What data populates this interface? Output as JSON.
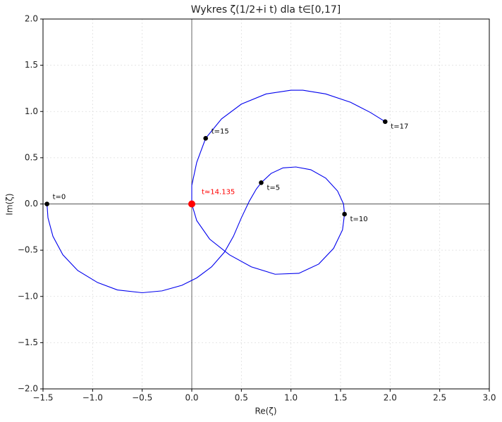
{
  "chart_data": {
    "type": "line",
    "title": "Wykres ζ(1/2+i t) dla t∈[0,17]",
    "xlabel": "Re(ζ)",
    "ylabel": "Im(ζ)",
    "xlim": [
      -1.5,
      3.0
    ],
    "ylim": [
      -2.0,
      2.0
    ],
    "xticks": [
      {
        "value": -1.5,
        "label": "−1.5"
      },
      {
        "value": -1.0,
        "label": "−1.0"
      },
      {
        "value": -0.5,
        "label": "−0.5"
      },
      {
        "value": 0,
        "label": "0.0"
      },
      {
        "value": 0.5,
        "label": "0.5"
      },
      {
        "value": 1,
        "label": "1.0"
      },
      {
        "value": 1.5,
        "label": "1.5"
      },
      {
        "value": 2,
        "label": "2.0"
      },
      {
        "value": 2.5,
        "label": "2.5"
      },
      {
        "value": 3,
        "label": "3.0"
      }
    ],
    "yticks": [
      {
        "value": -2,
        "label": "−2.0"
      },
      {
        "value": -1.5,
        "label": "−1.5"
      },
      {
        "value": -1,
        "label": "−1.0"
      },
      {
        "value": -0.5,
        "label": "−0.5"
      },
      {
        "value": 0,
        "label": "0.0"
      },
      {
        "value": 0.5,
        "label": "0.5"
      },
      {
        "value": 1,
        "label": "1.0"
      },
      {
        "value": 1.5,
        "label": "1.5"
      },
      {
        "value": 2,
        "label": "2.0"
      }
    ],
    "grid": true,
    "series": [
      {
        "color": "#0000ee",
        "x": [
          -1.46,
          -1.45,
          -1.4,
          -1.3,
          -1.15,
          -0.95,
          -0.75,
          -0.5,
          -0.3,
          -0.1,
          0.05,
          0.2,
          0.33,
          0.42,
          0.5,
          0.58,
          0.65,
          0.7,
          0.8,
          0.92,
          1.05,
          1.2,
          1.35,
          1.47,
          1.53,
          1.54,
          1.52,
          1.43,
          1.28,
          1.08,
          0.84,
          0.6,
          0.38,
          0.18,
          0.05,
          0.0,
          0.0,
          0.05,
          0.14,
          0.3,
          0.5,
          0.75,
          1.0,
          1.12,
          1.35,
          1.6,
          1.8,
          1.95
        ],
        "values": [
          0.0,
          -0.15,
          -0.35,
          -0.55,
          -0.72,
          -0.85,
          -0.93,
          -0.96,
          -0.94,
          -0.88,
          -0.8,
          -0.68,
          -0.52,
          -0.35,
          -0.15,
          0.03,
          0.16,
          0.23,
          0.33,
          0.39,
          0.4,
          0.37,
          0.28,
          0.14,
          0.0,
          -0.11,
          -0.28,
          -0.48,
          -0.65,
          -0.75,
          -0.76,
          -0.68,
          -0.55,
          -0.38,
          -0.18,
          0.0,
          0.2,
          0.45,
          0.71,
          0.92,
          1.08,
          1.19,
          1.23,
          1.23,
          1.19,
          1.1,
          0.99,
          0.89
        ]
      }
    ],
    "points": [
      {
        "label": "t=0",
        "x": -1.46,
        "y": 0.0,
        "color": "#000000"
      },
      {
        "label": "t=5",
        "x": 0.7,
        "y": 0.23,
        "color": "#000000"
      },
      {
        "label": "t=10",
        "x": 1.54,
        "y": -0.11,
        "color": "#000000"
      },
      {
        "label": "t=15",
        "x": 0.14,
        "y": 0.71,
        "color": "#000000"
      },
      {
        "label": "t=17",
        "x": 1.95,
        "y": 0.89,
        "color": "#000000"
      },
      {
        "label": "t≈14.135",
        "x": 0.0,
        "y": 0.0,
        "color": "#ff0000"
      }
    ]
  }
}
